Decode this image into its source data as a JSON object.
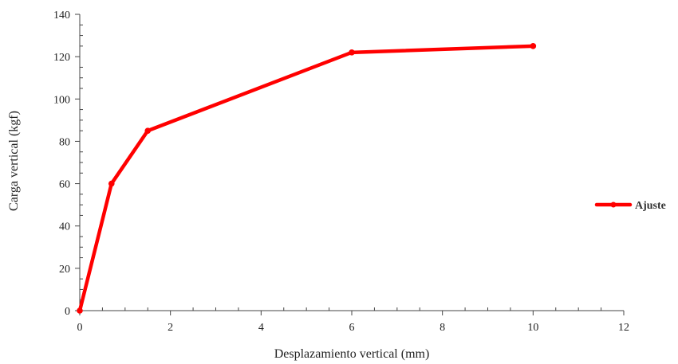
{
  "chart_data": {
    "type": "line",
    "title": "",
    "xlabel": "Desplazamiento  vertical  (mm)",
    "ylabel": "Carga  vertical  (kgf)",
    "xlim": [
      0,
      12
    ],
    "ylim": [
      0,
      140
    ],
    "xticks": [
      "0",
      "2",
      "4",
      "6",
      "8",
      "10",
      "12"
    ],
    "yticks": [
      "0",
      "20",
      "40",
      "60",
      "80",
      "100",
      "120",
      "140"
    ],
    "grid": false,
    "legend_position": "right",
    "series": [
      {
        "name": "Ajuste",
        "color": "#ff0000",
        "x": [
          0,
          0.7,
          1.5,
          6,
          10
        ],
        "y": [
          0,
          60,
          85,
          122,
          125
        ]
      }
    ]
  }
}
